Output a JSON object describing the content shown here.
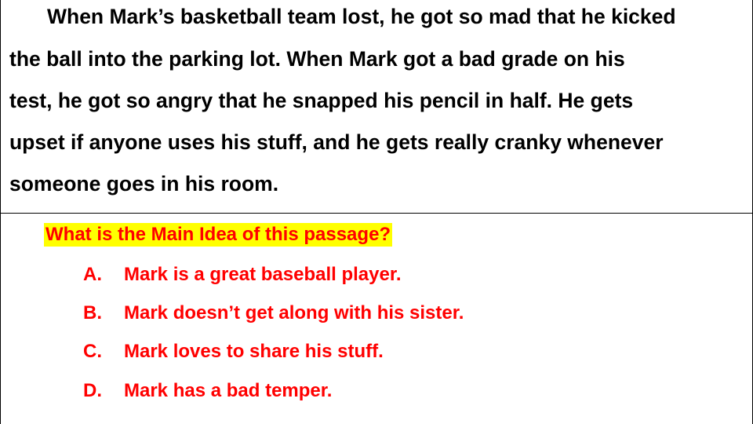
{
  "passage": {
    "lines": [
      "When Mark’s basketball team lost, he got so mad that he kicked",
      "the ball into the parking lot.  When Mark got a bad grade on his",
      "test, he got so angry that he snapped his pencil in half.  He gets",
      "upset if anyone uses his stuff, and he gets really cranky whenever",
      "someone goes in his room."
    ]
  },
  "question": {
    "prompt": "What is the Main Idea of this passage?",
    "options": [
      {
        "letter": "A.",
        "text": "Mark is a great baseball player."
      },
      {
        "letter": "B.",
        "text": "Mark doesn’t get along with his sister."
      },
      {
        "letter": "C.",
        "text": "Mark loves to share his stuff."
      },
      {
        "letter": "D.",
        "text": "Mark has a bad temper."
      }
    ]
  },
  "colors": {
    "passage_text": "#000000",
    "question_text": "#ff0000",
    "highlight": "#ffff00"
  }
}
